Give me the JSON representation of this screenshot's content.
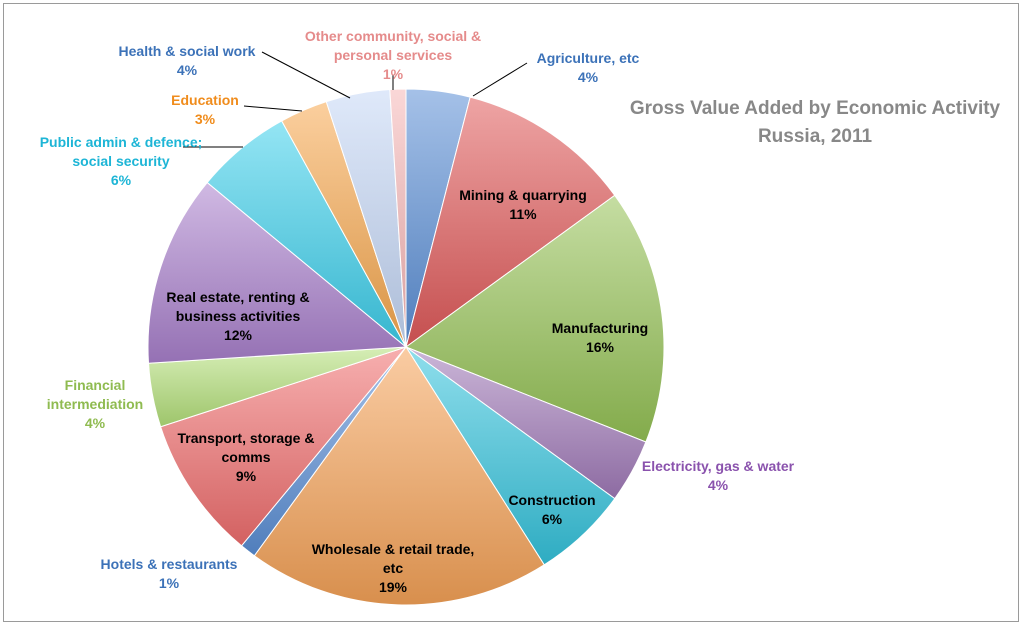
{
  "chart_data": {
    "type": "pie",
    "title": "Gross Value Added by Economic Activity",
    "subtitle": "Russia, 2011",
    "start": "12 o'clock",
    "direction": "clockwise",
    "slices": [
      {
        "label": "Agriculture, etc",
        "value": 4,
        "display": "4%",
        "color": "#5b8fd6",
        "label_color": "#3c72b8",
        "label_place": "outside"
      },
      {
        "label": "Mining & quarrying",
        "value": 11,
        "display": "11%",
        "color": "#e05a5a",
        "label_color": "#000000",
        "label_place": "inside"
      },
      {
        "label": "Manufacturing",
        "value": 16,
        "display": "16%",
        "color": "#95c255",
        "label_color": "#000000",
        "label_place": "inside"
      },
      {
        "label": "Electricity, gas & water",
        "value": 4,
        "display": "4%",
        "color": "#a07ab8",
        "label_color": "#8a52ad",
        "label_place": "outside"
      },
      {
        "label": "Construction",
        "value": 6,
        "display": "6%",
        "color": "#34c3dc",
        "label_color": "#000000",
        "label_place": "inside"
      },
      {
        "label": "Wholesale & retail trade, etc",
        "value": 19,
        "display": "19%",
        "color": "#f5a257",
        "label_color": "#000000",
        "label_place": "inside"
      },
      {
        "label": "Hotels & restaurants",
        "value": 1,
        "display": "1%",
        "color": "#5b8fd6",
        "label_color": "#3c72b8",
        "label_place": "outside"
      },
      {
        "label": "Transport, storage & comms",
        "value": 9,
        "display": "9%",
        "color": "#f06e6e",
        "label_color": "#000000",
        "label_place": "inside"
      },
      {
        "label": "Financial intermediation",
        "value": 4,
        "display": "4%",
        "color": "#b4e07a",
        "label_color": "#8fbb50",
        "label_place": "outside"
      },
      {
        "label": "Real estate, renting & business activities",
        "value": 12,
        "display": "12%",
        "color": "#a980cc",
        "label_color": "#000000",
        "label_place": "inside"
      },
      {
        "label": "Public admin & defence; social security",
        "value": 6,
        "display": "6%",
        "color": "#3dcfeb",
        "label_color": "#1db5d6",
        "label_place": "outside"
      },
      {
        "label": "Education",
        "value": 3,
        "display": "3%",
        "color": "#f7a84e",
        "label_color": "#f08c1c",
        "label_place": "outside"
      },
      {
        "label": "Health & social work",
        "value": 4,
        "display": "4%",
        "color": "#c5d7f5",
        "label_color": "#3c72b8",
        "label_place": "outside"
      },
      {
        "label": "Other community, social & personal services",
        "value": 1,
        "display": "1%",
        "color": "#f6b6b6",
        "label_color": "#e58b8b",
        "label_place": "outside"
      }
    ]
  }
}
